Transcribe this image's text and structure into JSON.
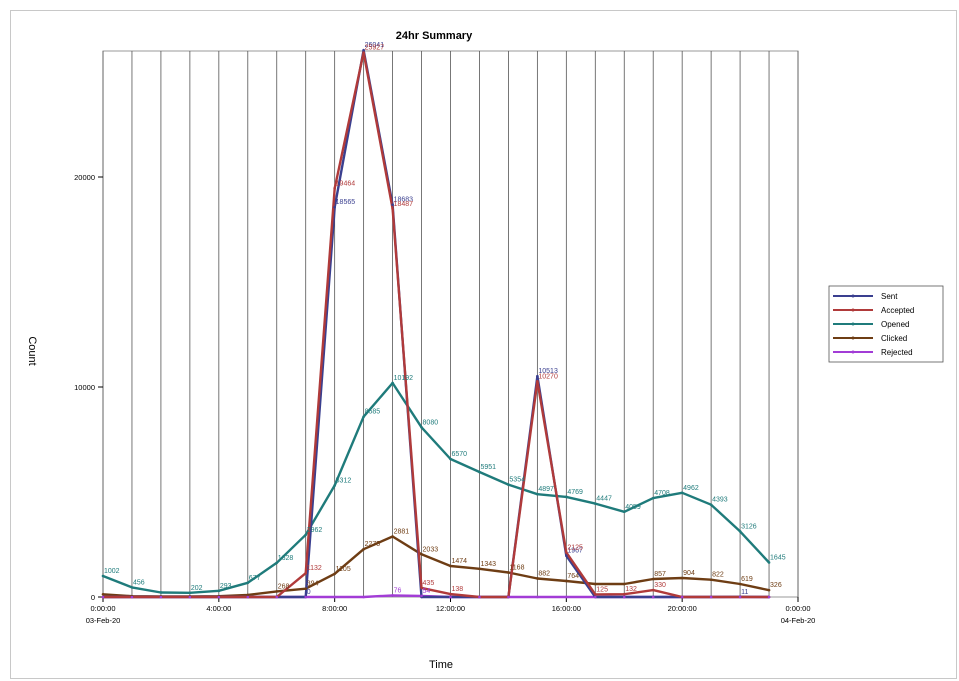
{
  "chart_data": {
    "type": "line",
    "title": "24hr Summary",
    "xlabel": "Time",
    "ylabel": "Count",
    "x": [
      0,
      1,
      2,
      3,
      4,
      5,
      6,
      7,
      8,
      9,
      10,
      11,
      12,
      13,
      14,
      15,
      16,
      17,
      18,
      19,
      20,
      21,
      22,
      23
    ],
    "xlim": [
      0,
      24
    ],
    "ylim": [
      0,
      26000
    ],
    "xticks": [
      {
        "x": 0,
        "label": "0:00:00",
        "sub": "03-Feb-20"
      },
      {
        "x": 4,
        "label": "4:00:00",
        "sub": ""
      },
      {
        "x": 8,
        "label": "8:00:00",
        "sub": ""
      },
      {
        "x": 12,
        "label": "12:00:00",
        "sub": ""
      },
      {
        "x": 16,
        "label": "16:00:00",
        "sub": ""
      },
      {
        "x": 20,
        "label": "20:00:00",
        "sub": ""
      },
      {
        "x": 24,
        "label": "0:00:00",
        "sub": "04-Feb-20"
      }
    ],
    "yticks": [
      {
        "y": 0,
        "label": "0"
      },
      {
        "y": 10000,
        "label": "10000"
      },
      {
        "y": 20000,
        "label": "20000"
      }
    ],
    "grid_x": true,
    "legend_position": "right",
    "series": [
      {
        "name": "Sent",
        "color": "#3a3f8f",
        "values": [
          0,
          0,
          0,
          0,
          0,
          0,
          0,
          0,
          18565,
          26041,
          18683,
          0,
          0,
          0,
          0,
          10513,
          1967,
          0,
          0,
          0,
          0,
          0,
          11,
          0
        ],
        "labels": [
          "",
          "",
          "",
          "",
          "",
          "",
          "",
          "0",
          "18565",
          "26041",
          "18683",
          "",
          "",
          "",
          "",
          "10513",
          "1967",
          "",
          "",
          "",
          "",
          "",
          "11",
          ""
        ]
      },
      {
        "name": "Accepted",
        "color": "#b03a3a",
        "values": [
          0,
          0,
          0,
          0,
          0,
          0,
          0,
          1132,
          19464,
          25927,
          18487,
          435,
          138,
          0,
          0,
          10270,
          2125,
          125,
          132,
          330,
          0,
          0,
          0,
          0
        ],
        "labels": [
          "",
          "",
          "",
          "",
          "",
          "",
          "",
          "1132",
          "19464",
          "25927",
          "18487",
          "435",
          "138",
          "",
          "",
          "10270",
          "2125",
          "125",
          "132",
          "330",
          "",
          "",
          "",
          ""
        ]
      },
      {
        "name": "Opened",
        "color": "#1f7b7b",
        "values": [
          1002,
          456,
          216,
          202,
          293,
          677,
          1628,
          2962,
          5312,
          8585,
          10192,
          8080,
          6570,
          5951,
          5354,
          4897,
          4769,
          4447,
          4059,
          4708,
          4962,
          4393,
          3126,
          1645
        ],
        "labels": [
          "1002",
          "456",
          "",
          "202",
          "293",
          "677",
          "1628",
          "2962",
          "5312",
          "8585",
          "10192",
          "8080",
          "6570",
          "5951",
          "5354",
          "4897",
          "4769",
          "4447",
          "4059",
          "4708",
          "4962",
          "4393",
          "3126",
          "1645"
        ]
      },
      {
        "name": "Clicked",
        "color": "#6e3d14",
        "values": [
          130,
          40,
          30,
          25,
          40,
          100,
          268,
          394,
          1105,
          2275,
          2881,
          2033,
          1474,
          1343,
          1168,
          882,
          764,
          617,
          617,
          857,
          904,
          822,
          619,
          326
        ],
        "labels": [
          "",
          "",
          "",
          "",
          "",
          "",
          "268",
          "394",
          "1105",
          "2275",
          "2881",
          "2033",
          "1474",
          "1343",
          "1168",
          "882",
          "764",
          "",
          "",
          "857",
          "904",
          "822",
          "619",
          "326"
        ]
      },
      {
        "name": "Rejected",
        "color": "#a23cd6",
        "values": [
          0,
          0,
          0,
          0,
          0,
          0,
          0,
          0,
          0,
          0,
          76,
          54,
          0,
          0,
          0,
          0,
          0,
          0,
          0,
          0,
          0,
          0,
          0,
          0
        ],
        "labels": [
          "",
          "",
          "",
          "",
          "",
          "",
          "",
          "",
          "",
          "",
          "76",
          "54",
          "",
          "",
          "",
          "",
          "",
          "",
          "",
          "",
          "",
          "",
          "",
          ""
        ]
      }
    ]
  }
}
